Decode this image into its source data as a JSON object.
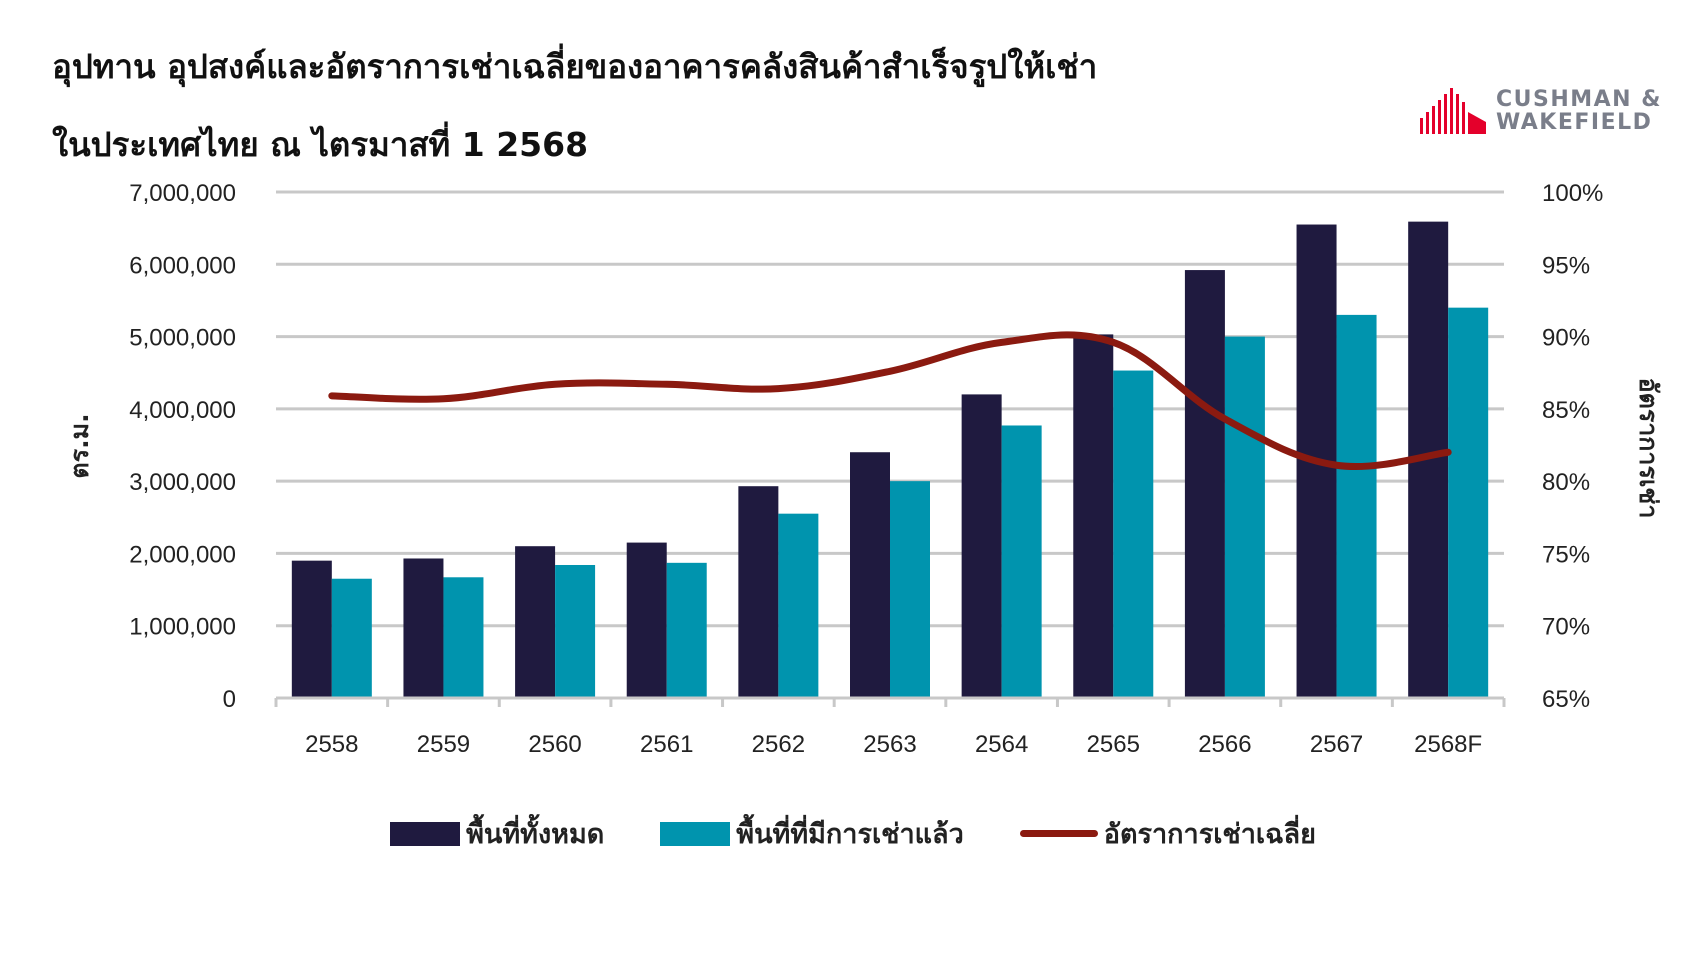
{
  "header": {
    "title_line1": "อุปทาน อุปสงค์และอัตราการเช่าเฉลี่ยของอาคารคลังสินค้าสำเร็จรูปให้เช่า",
    "title_line2": "ในประเทศไทย ณ ไตรมาสที่ 1 2568"
  },
  "logo": {
    "line1": "CUSHMAN &",
    "line2": "WAKEFIELD",
    "icon": "cushman-wakefield-bars-icon",
    "color": "#e4002b"
  },
  "chart_data": {
    "type": "bar",
    "categories": [
      "2558",
      "2559",
      "2560",
      "2561",
      "2562",
      "2563",
      "2564",
      "2565",
      "2566",
      "2567",
      "2568F"
    ],
    "series": [
      {
        "name": "พื้นที่ทั้งหมด",
        "type": "bar",
        "axis": "left",
        "color": "#1f1a3f",
        "values": [
          1900000,
          1930000,
          2100000,
          2150000,
          2930000,
          3400000,
          4200000,
          5030000,
          5920000,
          6550000,
          6590000
        ]
      },
      {
        "name": "พื้นที่ที่มีการเช่าแล้ว",
        "type": "bar",
        "axis": "left",
        "color": "#0094ae",
        "values": [
          1650000,
          1670000,
          1840000,
          1870000,
          2550000,
          3000000,
          3770000,
          4530000,
          5000000,
          5300000,
          5400000
        ]
      },
      {
        "name": "อัตราการเช่าเฉลี่ย",
        "type": "line",
        "axis": "right",
        "color": "#8b1a10",
        "values": [
          85.9,
          85.7,
          86.7,
          86.7,
          86.4,
          87.6,
          89.6,
          89.6,
          84.3,
          81.1,
          82.0
        ]
      }
    ],
    "ylabel": "ตร.ม.",
    "ylim": [
      0,
      7000000
    ],
    "yticks": [
      "0",
      "1,000,000",
      "2,000,000",
      "3,000,000",
      "4,000,000",
      "5,000,000",
      "6,000,000",
      "7,000,000"
    ],
    "y2label": "อัตราการเช่า",
    "y2lim": [
      65,
      100
    ],
    "y2ticks": [
      "65%",
      "70%",
      "75%",
      "80%",
      "85%",
      "90%",
      "95%",
      "100%"
    ],
    "grid": true,
    "legend": "bottom"
  }
}
